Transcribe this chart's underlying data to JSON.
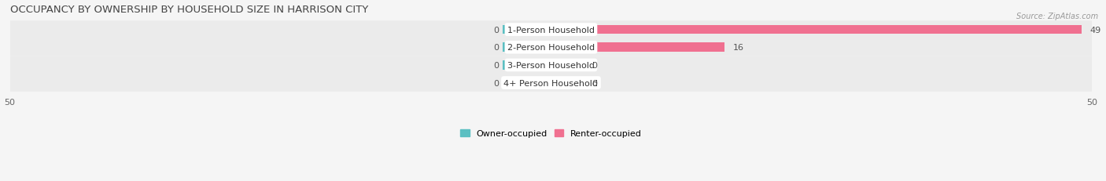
{
  "title": "OCCUPANCY BY OWNERSHIP BY HOUSEHOLD SIZE IN HARRISON CITY",
  "source": "Source: ZipAtlas.com",
  "categories": [
    "1-Person Household",
    "2-Person Household",
    "3-Person Household",
    "4+ Person Household"
  ],
  "owner_values": [
    0,
    0,
    0,
    0
  ],
  "renter_values": [
    49,
    16,
    0,
    0
  ],
  "xlim": 50,
  "owner_color": "#5bbfc2",
  "renter_color": "#f07090",
  "row_bg_color": "#ebebeb",
  "fig_bg_color": "#f5f5f5",
  "title_fontsize": 9.5,
  "tick_fontsize": 8,
  "label_fontsize": 8,
  "value_fontsize": 8,
  "legend_fontsize": 8,
  "bar_height": 0.52,
  "owner_stub": 4.5,
  "renter_stub": 3.5,
  "figsize": [
    14.06,
    2.32
  ]
}
